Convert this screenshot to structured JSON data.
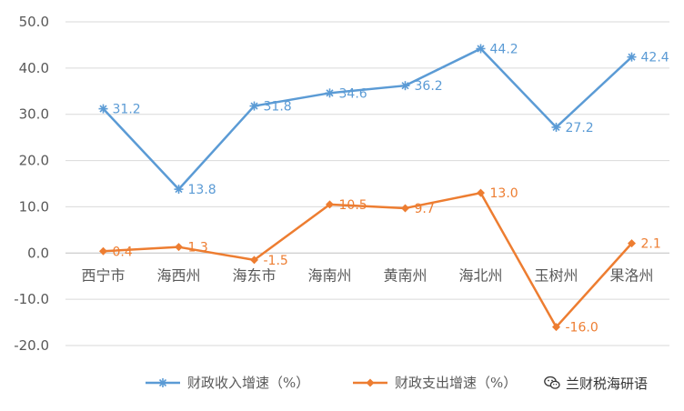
{
  "chart_data": {
    "type": "line",
    "categories": [
      "西宁市",
      "海西州",
      "海东市",
      "海南州",
      "黄南州",
      "海北州",
      "玉树州",
      "果洛州"
    ],
    "series": [
      {
        "name": "财政收入增速（%）",
        "values": [
          31.2,
          13.8,
          31.8,
          34.6,
          36.2,
          44.2,
          27.2,
          42.4
        ],
        "labels": [
          "31.2",
          "13.8",
          "31.8",
          "34.6",
          "36.2",
          "44.2",
          "27.2",
          "42.4"
        ],
        "color": "#5B9BD5",
        "marker": "asterisk"
      },
      {
        "name": "财政支出增速（%）",
        "values": [
          0.4,
          1.3,
          -1.5,
          10.5,
          9.7,
          13.0,
          -16.0,
          2.1
        ],
        "labels": [
          "0.4",
          "1.3",
          "-1.5",
          "10.5",
          "9.7",
          "13.0",
          "-16.0",
          "2.1"
        ],
        "color": "#ED7D31",
        "marker": "diamond"
      }
    ],
    "ylim": [
      -20,
      50
    ],
    "yticks": [
      "50.0",
      "40.0",
      "30.0",
      "20.0",
      "10.0",
      "0.0",
      "-10.0",
      "-20.0"
    ],
    "ytick_values": [
      50,
      40,
      30,
      20,
      10,
      0,
      -10,
      -20
    ],
    "grid": true,
    "legend_position": "bottom",
    "title": "",
    "xlabel": "",
    "ylabel": ""
  },
  "watermark": {
    "text": "兰财税海研语",
    "icon": "wechat-icon"
  }
}
